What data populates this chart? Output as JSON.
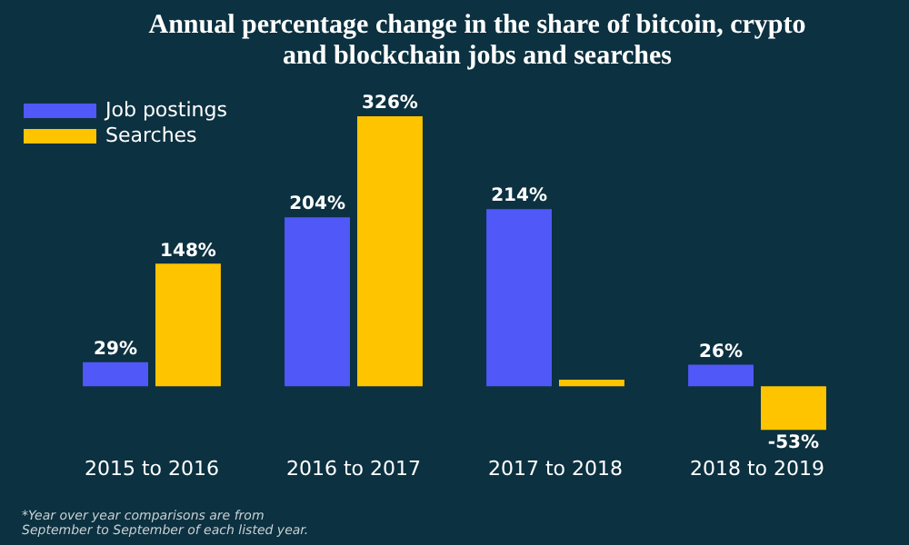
{
  "chart_data": {
    "type": "bar",
    "title": "Annual percentage change in the share of bitcoin, crypto and blockchain jobs and searches",
    "categories": [
      "2015 to 2016",
      "2016 to 2017",
      "2017 to 2018",
      "2018 to 2019"
    ],
    "series": [
      {
        "name": "Job postings",
        "color": "#5058f8",
        "values": [
          29,
          204,
          214,
          26
        ],
        "value_labels": [
          "29%",
          "204%",
          "214%",
          "26%"
        ]
      },
      {
        "name": "Searches",
        "color": "#fec400",
        "values": [
          148,
          326,
          8,
          -53
        ],
        "value_labels": [
          "148%",
          "326%",
          null,
          "-53%"
        ]
      }
    ],
    "legend": "top left",
    "grid": false,
    "annotations": [
      "*Year over year comparisons are from September to September of each listed year."
    ]
  }
}
